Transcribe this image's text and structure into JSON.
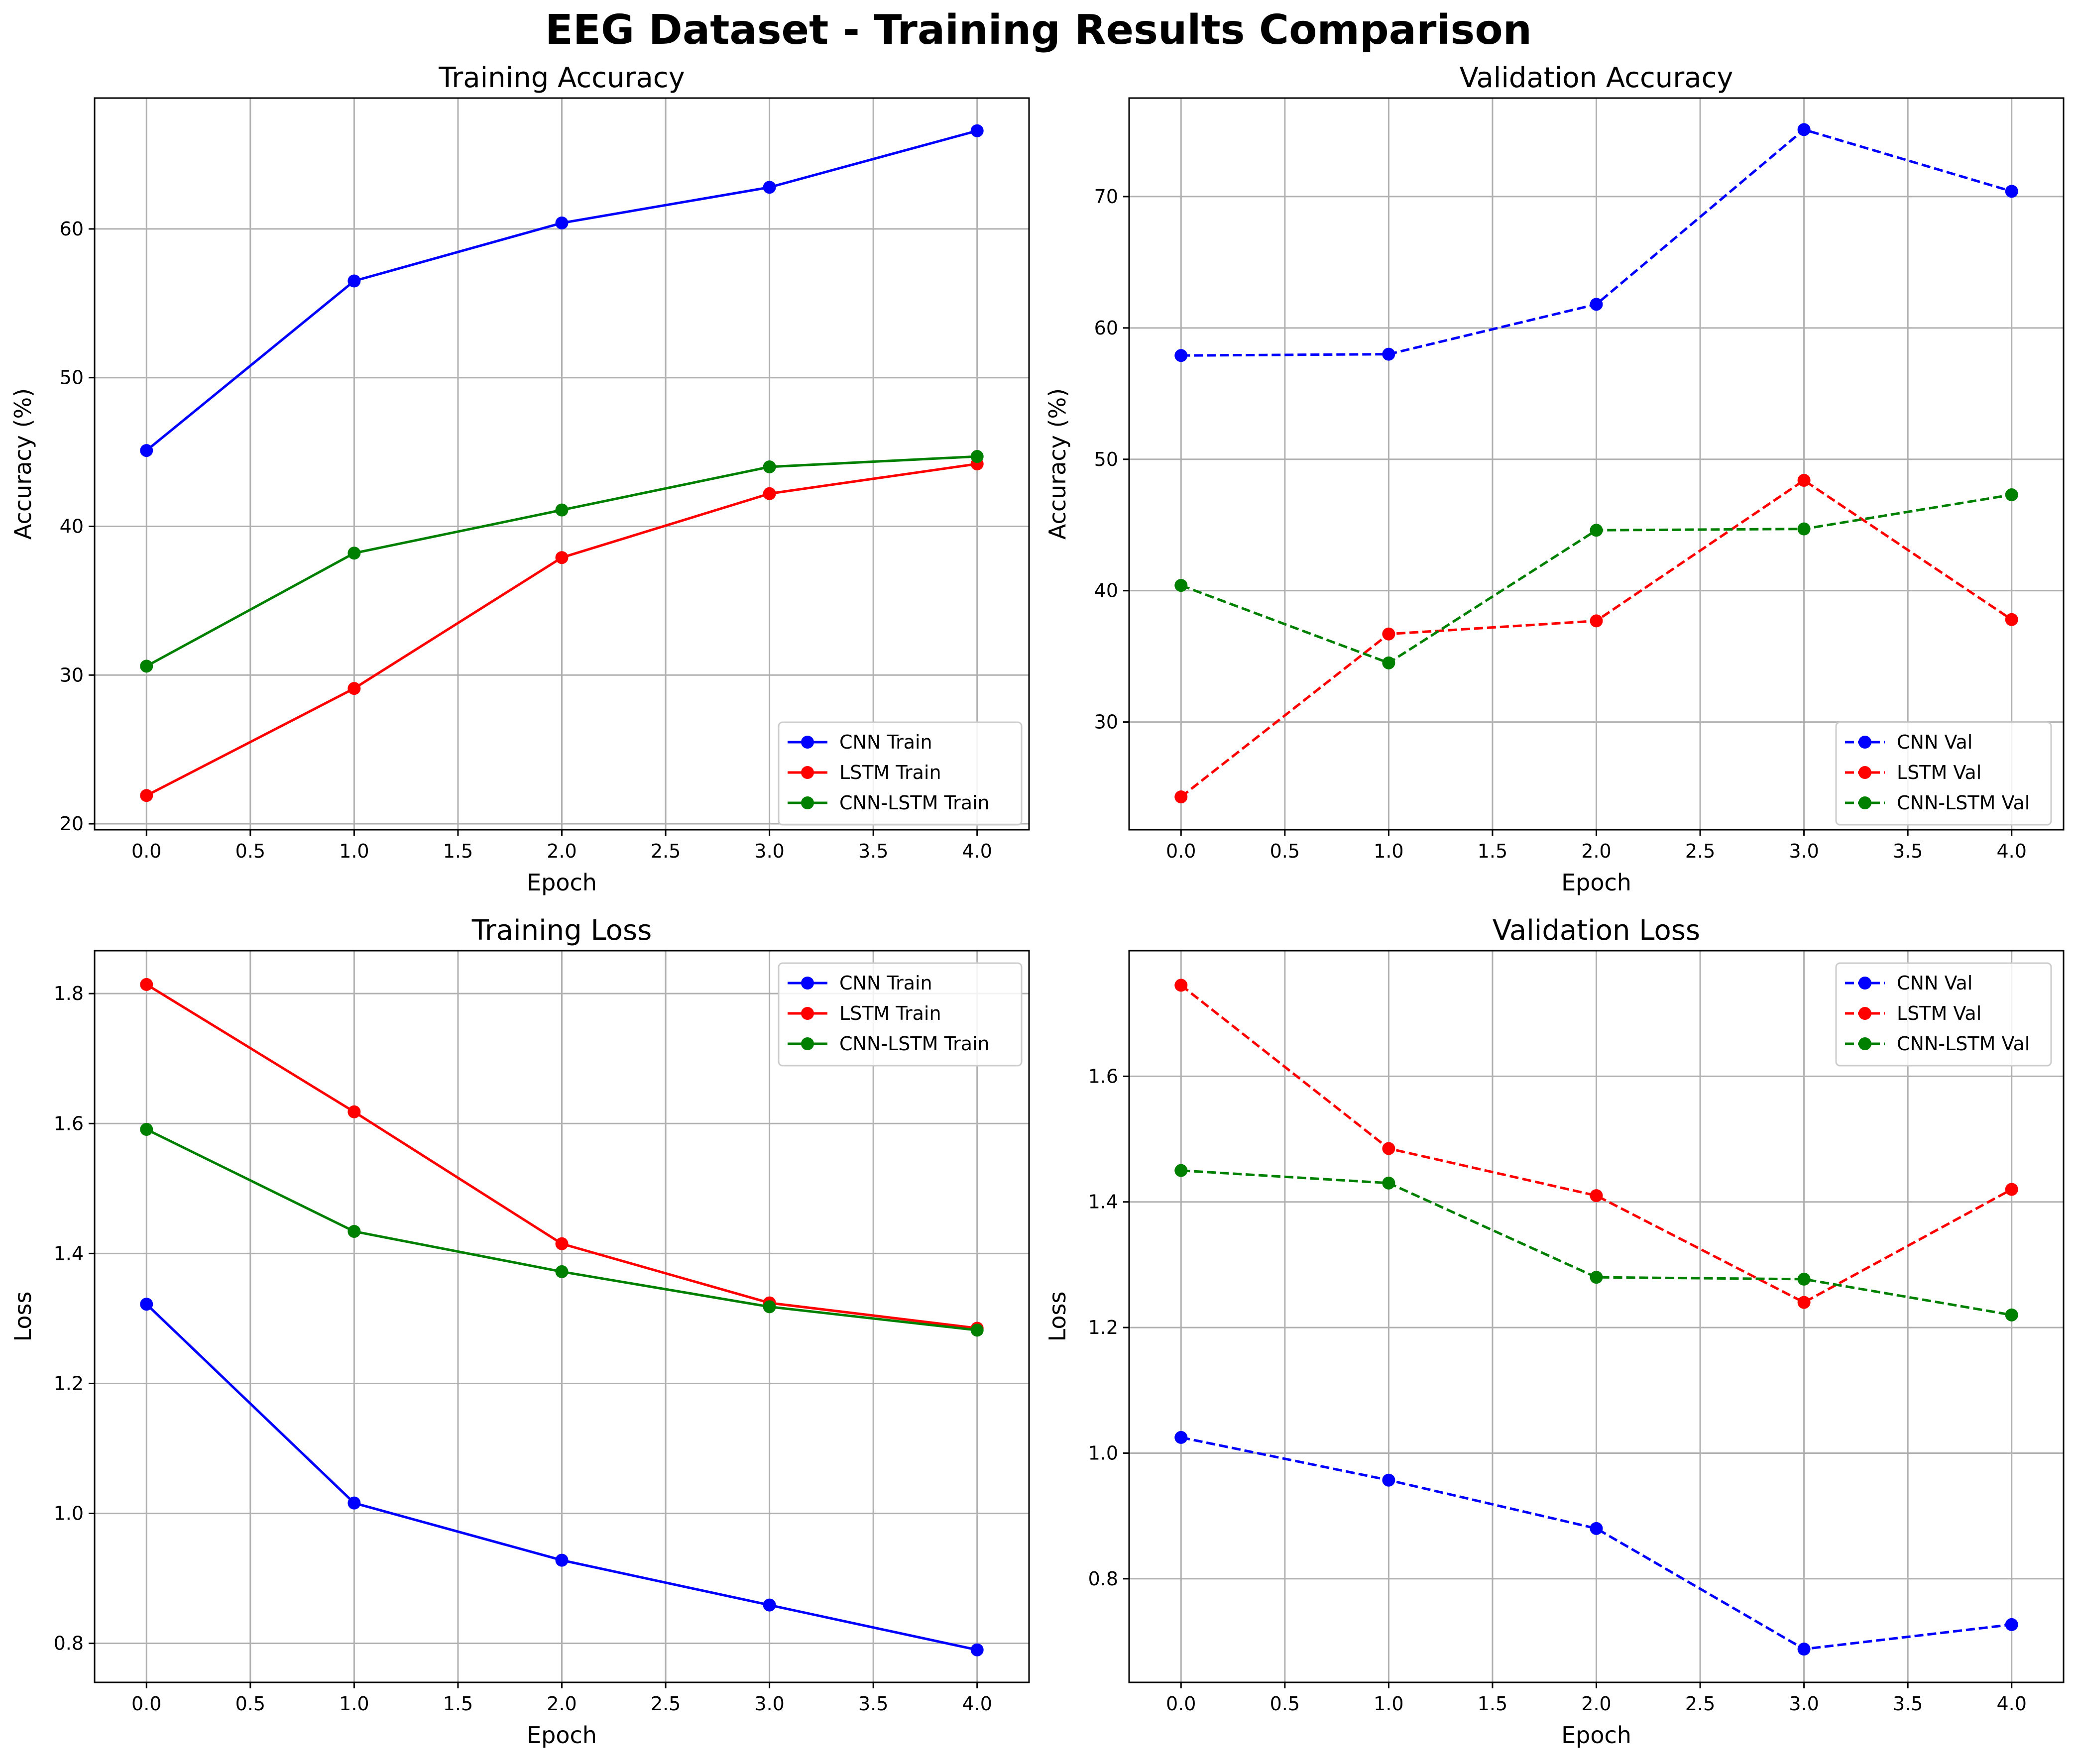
{
  "figure": {
    "suptitle": "EEG Dataset - Training Results Comparison"
  },
  "chart_data": [
    {
      "type": "line",
      "title": "Training Accuracy",
      "xlabel": "Epoch",
      "ylabel": "Accuracy (%)",
      "xlim": [
        -0.25,
        4.25
      ],
      "ylim": [
        19.6,
        68.8
      ],
      "xticks": [
        "0.0",
        "0.5",
        "1.0",
        "1.5",
        "2.0",
        "2.5",
        "3.0",
        "3.5",
        "4.0"
      ],
      "yticks": [
        20,
        30,
        40,
        50,
        60
      ],
      "grid": true,
      "legend": "lower-right",
      "x": [
        0,
        1,
        2,
        3,
        4
      ],
      "series": [
        {
          "name": "CNN Train",
          "color": "#0000ff",
          "style": "solid",
          "values": [
            45.1,
            56.5,
            60.4,
            62.8,
            66.6
          ]
        },
        {
          "name": "LSTM Train",
          "color": "#ff0000",
          "style": "solid",
          "values": [
            21.9,
            29.1,
            37.9,
            42.2,
            44.2
          ]
        },
        {
          "name": "CNN-LSTM Train",
          "color": "#008000",
          "style": "solid",
          "values": [
            30.6,
            38.2,
            41.1,
            44.0,
            44.7
          ]
        }
      ]
    },
    {
      "type": "line",
      "title": "Validation Accuracy",
      "xlabel": "Epoch",
      "ylabel": "Accuracy (%)",
      "xlim": [
        -0.25,
        4.25
      ],
      "ylim": [
        21.8,
        77.5
      ],
      "xticks": [
        "0.0",
        "0.5",
        "1.0",
        "1.5",
        "2.0",
        "2.5",
        "3.0",
        "3.5",
        "4.0"
      ],
      "yticks": [
        30,
        40,
        50,
        60,
        70
      ],
      "grid": true,
      "legend": "lower-right",
      "x": [
        0,
        1,
        2,
        3,
        4
      ],
      "series": [
        {
          "name": "CNN Val",
          "color": "#0000ff",
          "style": "dashed",
          "values": [
            57.9,
            58.0,
            61.8,
            75.1,
            70.4
          ]
        },
        {
          "name": "LSTM Val",
          "color": "#ff0000",
          "style": "dashed",
          "values": [
            24.3,
            36.7,
            37.7,
            48.4,
            37.8
          ]
        },
        {
          "name": "CNN-LSTM Val",
          "color": "#008000",
          "style": "dashed",
          "values": [
            40.4,
            34.5,
            44.6,
            44.7,
            47.3
          ]
        }
      ]
    },
    {
      "type": "line",
      "title": "Training Loss",
      "xlabel": "Epoch",
      "ylabel": "Loss",
      "xlim": [
        -0.25,
        4.25
      ],
      "ylim": [
        0.74,
        1.866
      ],
      "xticks": [
        "0.0",
        "0.5",
        "1.0",
        "1.5",
        "2.0",
        "2.5",
        "3.0",
        "3.5",
        "4.0"
      ],
      "yticks": [
        "0.8",
        "1.0",
        "1.2",
        "1.4",
        "1.6",
        "1.8"
      ],
      "grid": true,
      "legend": "upper-right",
      "x": [
        0,
        1,
        2,
        3,
        4
      ],
      "series": [
        {
          "name": "CNN Train",
          "color": "#0000ff",
          "style": "solid",
          "values": [
            1.322,
            1.016,
            0.928,
            0.859,
            0.79
          ]
        },
        {
          "name": "LSTM Train",
          "color": "#ff0000",
          "style": "solid",
          "values": [
            1.814,
            1.618,
            1.415,
            1.324,
            1.285
          ]
        },
        {
          "name": "CNN-LSTM Train",
          "color": "#008000",
          "style": "solid",
          "values": [
            1.591,
            1.434,
            1.372,
            1.318,
            1.282
          ]
        }
      ]
    },
    {
      "type": "line",
      "title": "Validation Loss",
      "xlabel": "Epoch",
      "ylabel": "Loss",
      "xlim": [
        -0.25,
        4.25
      ],
      "ylim": [
        0.635,
        1.8
      ],
      "xticks": [
        "0.0",
        "0.5",
        "1.0",
        "1.5",
        "2.0",
        "2.5",
        "3.0",
        "3.5",
        "4.0"
      ],
      "yticks": [
        "0.8",
        "1.0",
        "1.2",
        "1.4",
        "1.6"
      ],
      "grid": true,
      "legend": "upper-right",
      "x": [
        0,
        1,
        2,
        3,
        4
      ],
      "series": [
        {
          "name": "CNN Val",
          "color": "#0000ff",
          "style": "dashed",
          "values": [
            1.025,
            0.957,
            0.88,
            0.688,
            0.727
          ]
        },
        {
          "name": "LSTM Val",
          "color": "#ff0000",
          "style": "dashed",
          "values": [
            1.745,
            1.485,
            1.41,
            1.24,
            1.42
          ]
        },
        {
          "name": "CNN-LSTM Val",
          "color": "#008000",
          "style": "dashed",
          "values": [
            1.45,
            1.43,
            1.28,
            1.277,
            1.22
          ]
        }
      ]
    }
  ]
}
